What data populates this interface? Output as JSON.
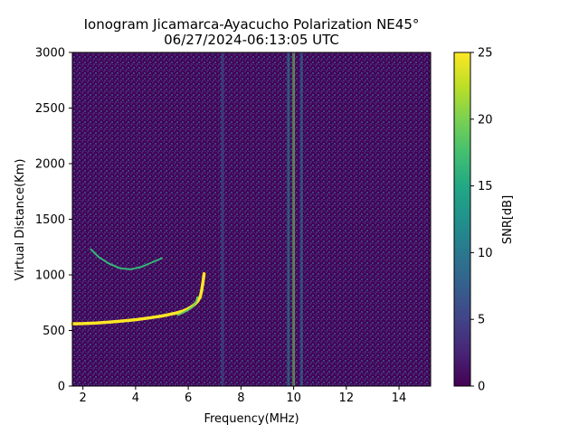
{
  "chart_data": {
    "type": "heatmap",
    "title_line1": "Ionogram Jicamarca-Ayacucho Polarization NE45°",
    "title_line2": "06/27/2024-06:13:05 UTC",
    "xlabel": "Frequency(MHz)",
    "ylabel": "Virtual Distance(Km)",
    "xlim": [
      1.6,
      15.2
    ],
    "ylim": [
      0,
      3000
    ],
    "x_ticks": [
      2,
      4,
      6,
      8,
      10,
      12,
      14
    ],
    "y_ticks": [
      0,
      500,
      1000,
      1500,
      2000,
      2500,
      3000
    ],
    "colorbar": {
      "label": "SNR[dB]",
      "range": [
        0,
        25
      ],
      "ticks": [
        0,
        5,
        10,
        15,
        20,
        25
      ],
      "colormap": "viridis"
    },
    "traces": [
      {
        "description_color": "#fde725",
        "points": [
          [
            1.6,
            560
          ],
          [
            2.0,
            562
          ],
          [
            2.5,
            567
          ],
          [
            3.0,
            575
          ],
          [
            3.5,
            585
          ],
          [
            4.0,
            597
          ],
          [
            4.5,
            612
          ],
          [
            5.0,
            630
          ],
          [
            5.5,
            655
          ],
          [
            5.8,
            675
          ],
          [
            6.0,
            695
          ],
          [
            6.2,
            725
          ],
          [
            6.35,
            760
          ],
          [
            6.45,
            800
          ],
          [
            6.5,
            850
          ],
          [
            6.55,
            920
          ],
          [
            6.6,
            1010
          ]
        ]
      },
      {
        "description_color": "#6ece58",
        "points": [
          [
            5.6,
            640
          ],
          [
            5.8,
            660
          ],
          [
            6.0,
            685
          ],
          [
            6.2,
            720
          ],
          [
            6.3,
            760
          ],
          [
            6.35,
            800
          ]
        ]
      },
      {
        "description_color": "#35b779",
        "points": [
          [
            2.3,
            1230
          ],
          [
            2.6,
            1160
          ],
          [
            3.0,
            1100
          ],
          [
            3.4,
            1060
          ],
          [
            3.8,
            1050
          ],
          [
            4.2,
            1070
          ],
          [
            4.6,
            1110
          ],
          [
            5.0,
            1150
          ]
        ]
      }
    ],
    "interference_bands": [
      {
        "x": 7.3,
        "level": 8
      },
      {
        "x": 9.8,
        "level": 12
      },
      {
        "x": 10.0,
        "level": 20
      },
      {
        "x": 10.3,
        "level": 9
      }
    ]
  }
}
